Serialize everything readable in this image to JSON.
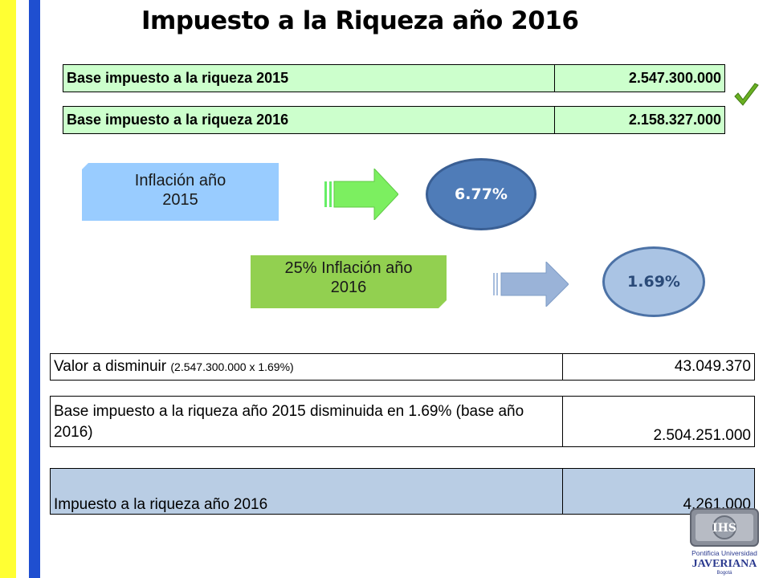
{
  "title": "Impuesto a la Riqueza año 2016",
  "base_rows": [
    {
      "label": "Base impuesto a la riqueza 2015",
      "value": "2.547.300.000"
    },
    {
      "label": "Base impuesto a la riqueza 2016",
      "value": "2.158.327.000"
    }
  ],
  "inflation_tag": {
    "line1": "Inflación año",
    "line2": "2015"
  },
  "inflation_value": "6.77%",
  "inflation_tag_2": {
    "line1": "25% Inflación año",
    "line2": "2016"
  },
  "inflation_value_2": "1.69%",
  "valor_disminuir": {
    "label": "Valor a disminuir",
    "detail": "(2.547.300.000 x 1.69%)",
    "value": "43.049.370"
  },
  "base_disminuida": {
    "label": "Base impuesto a la riqueza año 2015 disminuida en 1.69% (base año 2016)",
    "value": "2.504.251.000"
  },
  "impuesto": {
    "label": "Impuesto a la riqueza año 2016",
    "value": "4.261.000"
  },
  "logo": {
    "line1": "Pontificia Universidad",
    "line2": "JAVERIANA",
    "line3": "Bogotá",
    "mono": "IHS"
  },
  "colors": {
    "yellow_stripe": "#ffff33",
    "blue_stripe": "#1f4fd0",
    "green_table": "#ccffcc",
    "blue_table": "#b9cde4"
  },
  "icons": {
    "check": "check-icon",
    "arrows": "right-arrow-icon"
  }
}
